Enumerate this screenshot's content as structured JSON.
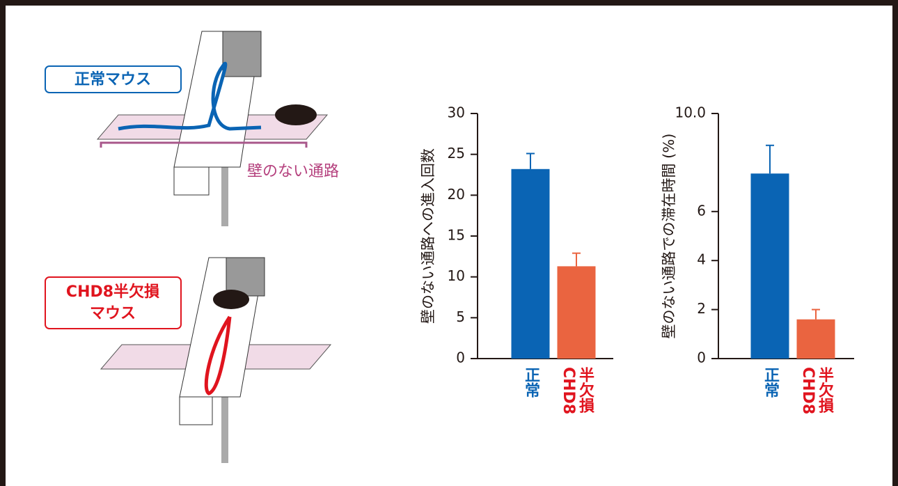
{
  "illustration": {
    "normal_label": "正常マウス",
    "mutant_label": [
      "CHD8半欠損",
      "マウス"
    ],
    "open_arm_label": "壁のない通路"
  },
  "chart_data": [
    {
      "type": "bar",
      "y_label": "壁のない通路への進入回数",
      "categories": [
        "正常",
        "CHD8\n半欠損"
      ],
      "category_colors": [
        "#0a64b4",
        "#e0141e"
      ],
      "values": [
        23.2,
        11.3
      ],
      "errors": [
        1.9,
        1.6
      ],
      "colors": [
        "#0a64b4",
        "#ea6440"
      ],
      "ylim": [
        0,
        30
      ],
      "yticks": [
        0,
        5,
        10,
        15,
        20,
        25,
        30
      ]
    },
    {
      "type": "bar",
      "y_label": "壁のない通路での滞在時間 (%)",
      "categories": [
        "正常",
        "CHD8\n半欠損"
      ],
      "category_colors": [
        "#0a64b4",
        "#e0141e"
      ],
      "values": [
        7.55,
        1.6
      ],
      "errors": [
        1.15,
        0.4
      ],
      "colors": [
        "#0a64b4",
        "#ea6440"
      ],
      "ylim": [
        0,
        10
      ],
      "yticks": [
        0,
        2,
        4,
        6,
        {
          "value": 10,
          "label": "10.0"
        }
      ]
    }
  ]
}
